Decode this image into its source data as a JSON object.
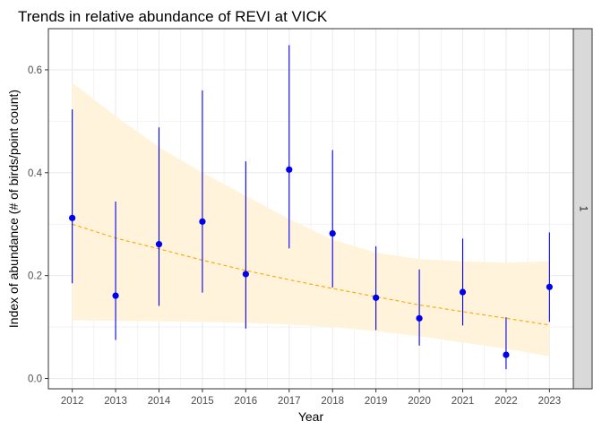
{
  "chart_data": {
    "type": "scatter",
    "title": "Trends in relative abundance of REVI at VICK",
    "xlabel": "Year",
    "ylabel": "Index of abundance (# of birds/point count)",
    "facet_label": "1",
    "x": [
      "2012",
      "2013",
      "2014",
      "2015",
      "2016",
      "2017",
      "2018",
      "2019",
      "2020",
      "2021",
      "2022",
      "2023"
    ],
    "ylim": [
      -0.02,
      0.68
    ],
    "yticks": [
      0.0,
      0.2,
      0.4,
      0.6
    ],
    "ytick_labels": [
      "0.0",
      "0.2",
      "0.4",
      "0.6"
    ],
    "grid": true,
    "series": [
      {
        "kind": "point-with-errorbar",
        "y": [
          0.312,
          0.161,
          0.261,
          0.305,
          0.203,
          0.406,
          0.282,
          0.157,
          0.117,
          0.168,
          0.046,
          0.178
        ],
        "lower": [
          0.185,
          0.075,
          0.141,
          0.167,
          0.097,
          0.253,
          0.177,
          0.094,
          0.064,
          0.103,
          0.018,
          0.11
        ],
        "upper": [
          0.523,
          0.344,
          0.488,
          0.56,
          0.422,
          0.648,
          0.444,
          0.257,
          0.212,
          0.272,
          0.119,
          0.284
        ]
      },
      {
        "kind": "trend-line",
        "y": [
          0.3,
          0.273,
          0.252,
          0.23,
          0.21,
          0.192,
          0.175,
          0.159,
          0.143,
          0.13,
          0.117,
          0.104
        ],
        "lower": [
          0.113,
          0.112,
          0.111,
          0.11,
          0.108,
          0.105,
          0.1,
          0.092,
          0.082,
          0.07,
          0.058,
          0.043
        ],
        "upper": [
          0.575,
          0.51,
          0.45,
          0.4,
          0.355,
          0.31,
          0.27,
          0.245,
          0.232,
          0.228,
          0.225,
          0.228
        ]
      }
    ],
    "colors": {
      "points": "#0000ee",
      "errorbars": "#0000ee",
      "trend": "#ffa500",
      "ribbon": "#fff3dc",
      "grid": "#ebebeb",
      "strip_bg": "#d9d9d9"
    }
  }
}
